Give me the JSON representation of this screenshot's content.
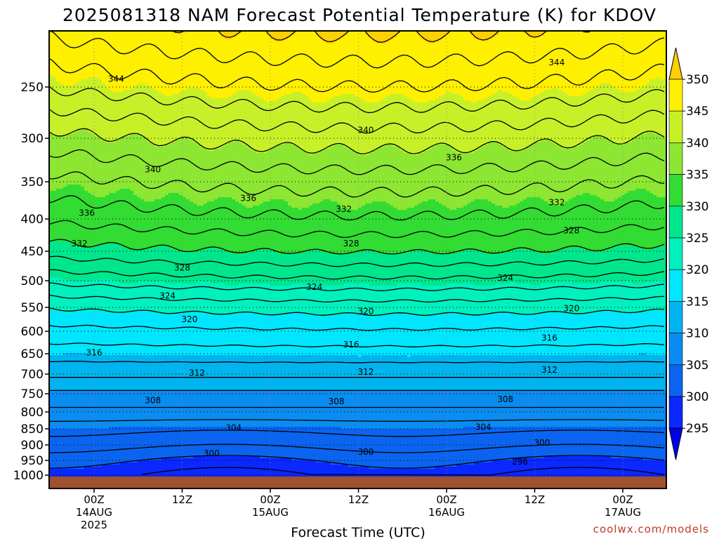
{
  "chart_data": {
    "type": "heatmap",
    "title": "2025081318 NAM Forecast Potential Temperature (K) for KDOV",
    "xlabel": "Forecast Time (UTC)",
    "credit": "coolwx.com/models",
    "y_ticks": [
      250,
      300,
      350,
      400,
      450,
      500,
      550,
      600,
      650,
      700,
      750,
      800,
      850,
      900,
      950,
      1000
    ],
    "y_range": [
      200,
      1000
    ],
    "x_range_hours": [
      -6,
      64
    ],
    "x_ticks": [
      {
        "h": 0,
        "l1": "00Z",
        "l2": "14AUG",
        "l3": "2025"
      },
      {
        "h": 12,
        "l1": "12Z",
        "l2": "",
        "l3": ""
      },
      {
        "h": 24,
        "l1": "00Z",
        "l2": "15AUG",
        "l3": ""
      },
      {
        "h": 36,
        "l1": "12Z",
        "l2": "",
        "l3": ""
      },
      {
        "h": 48,
        "l1": "00Z",
        "l2": "16AUG",
        "l3": ""
      },
      {
        "h": 60,
        "l1": "12Z",
        "l2": "",
        "l3": ""
      },
      {
        "h": 72,
        "l1": "00Z",
        "l2": "17AUG",
        "l3": ""
      }
    ],
    "colorbar": {
      "levels": [
        295,
        300,
        305,
        310,
        315,
        320,
        325,
        330,
        335,
        340,
        345,
        350
      ],
      "colors": [
        "#0000e6",
        "#0a28ff",
        "#0a64f0",
        "#0a8cf0",
        "#00b4f0",
        "#00e6ff",
        "#00f0be",
        "#00e68c",
        "#32dc32",
        "#8ce632",
        "#c8f028",
        "#ffef00",
        "#ffd000"
      ]
    },
    "contour_interval": 2,
    "grid": true,
    "contour_labels": [
      {
        "v": "344",
        "h": 3,
        "p": 242
      },
      {
        "v": "344",
        "h": 63,
        "p": 226
      },
      {
        "v": "340",
        "h": 37,
        "p": 292
      },
      {
        "v": "340",
        "h": 8,
        "p": 336
      },
      {
        "v": "336",
        "h": 49,
        "p": 322
      },
      {
        "v": "336",
        "h": 21,
        "p": 372
      },
      {
        "v": "336",
        "h": -1,
        "p": 392
      },
      {
        "v": "332",
        "h": 34,
        "p": 387
      },
      {
        "v": "332",
        "h": 63,
        "p": 378
      },
      {
        "v": "332",
        "h": -2,
        "p": 438
      },
      {
        "v": "328",
        "h": 65,
        "p": 418
      },
      {
        "v": "328",
        "h": 35,
        "p": 438
      },
      {
        "v": "328",
        "h": 12,
        "p": 478
      },
      {
        "v": "324",
        "h": 56,
        "p": 495
      },
      {
        "v": "324",
        "h": 30,
        "p": 512
      },
      {
        "v": "324",
        "h": 10,
        "p": 528
      },
      {
        "v": "320",
        "h": 37,
        "p": 558
      },
      {
        "v": "320",
        "h": 65,
        "p": 552
      },
      {
        "v": "320",
        "h": 13,
        "p": 575
      },
      {
        "v": "316",
        "h": 35,
        "p": 630
      },
      {
        "v": "316",
        "h": 62,
        "p": 615
      },
      {
        "v": "316",
        "h": 0,
        "p": 648
      },
      {
        "v": "312",
        "h": 37,
        "p": 695
      },
      {
        "v": "312",
        "h": 62,
        "p": 690
      },
      {
        "v": "312",
        "h": 14,
        "p": 697
      },
      {
        "v": "308",
        "h": 33,
        "p": 771
      },
      {
        "v": "308",
        "h": 56,
        "p": 765
      },
      {
        "v": "308",
        "h": 8,
        "p": 768
      },
      {
        "v": "304",
        "h": 19,
        "p": 847
      },
      {
        "v": "304",
        "h": 53,
        "p": 845
      },
      {
        "v": "300",
        "h": 61,
        "p": 894
      },
      {
        "v": "300",
        "h": 16,
        "p": 927
      },
      {
        "v": "300",
        "h": 37,
        "p": 923
      },
      {
        "v": "296",
        "h": 58,
        "p": 955
      }
    ]
  }
}
